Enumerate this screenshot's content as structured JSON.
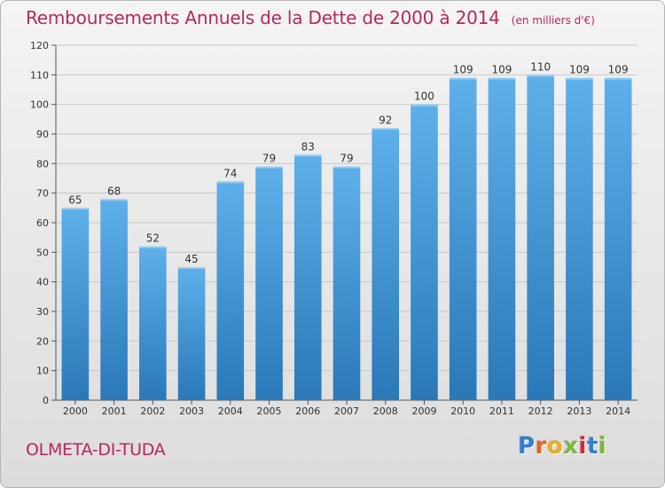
{
  "title": "Remboursements Annuels de la Dette de 2000 à 2014",
  "unit": "(en milliers d'€)",
  "commune": "OLMETA-DI-TUDA",
  "logo": {
    "letters": [
      "P",
      "r",
      "o",
      "x",
      "i",
      "t",
      "i"
    ],
    "colors": [
      "#2f7fcf",
      "#e8641b",
      "#ecac1c",
      "#7ab93a",
      "#d6273b",
      "#2f7fcf",
      "#7ab93a"
    ]
  },
  "colors": {
    "title": "#b5285d",
    "bar_top": "#5eb0ea",
    "bar_bottom": "#2a78b8",
    "grid": "#c8c8c8",
    "axis_text": "#333333"
  },
  "chart_data": {
    "type": "bar",
    "title": "Remboursements Annuels de la Dette de 2000 à 2014",
    "ylabel": "",
    "xlabel": "",
    "ylim": [
      0,
      120
    ],
    "yticks": [
      0,
      10,
      20,
      30,
      40,
      50,
      60,
      70,
      80,
      90,
      100,
      110,
      120
    ],
    "grid": true,
    "categories": [
      "2000",
      "2001",
      "2002",
      "2003",
      "2004",
      "2005",
      "2006",
      "2007",
      "2008",
      "2009",
      "2010",
      "2011",
      "2012",
      "2013",
      "2014"
    ],
    "values": [
      65,
      68,
      52,
      45,
      74,
      79,
      83,
      79,
      92,
      100,
      109,
      109,
      110,
      109,
      109
    ]
  }
}
